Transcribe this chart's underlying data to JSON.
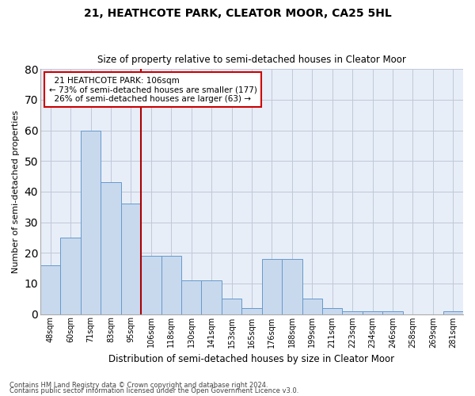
{
  "title1": "21, HEATHCOTE PARK, CLEATOR MOOR, CA25 5HL",
  "title2": "Size of property relative to semi-detached houses in Cleator Moor",
  "xlabel": "Distribution of semi-detached houses by size in Cleator Moor",
  "ylabel": "Number of semi-detached properties",
  "categories": [
    "48sqm",
    "60sqm",
    "71sqm",
    "83sqm",
    "95sqm",
    "106sqm",
    "118sqm",
    "130sqm",
    "141sqm",
    "153sqm",
    "165sqm",
    "176sqm",
    "188sqm",
    "199sqm",
    "211sqm",
    "223sqm",
    "234sqm",
    "246sqm",
    "258sqm",
    "269sqm",
    "281sqm"
  ],
  "values": [
    16,
    25,
    60,
    43,
    36,
    19,
    19,
    11,
    11,
    5,
    2,
    18,
    18,
    5,
    2,
    1,
    1,
    1,
    0,
    0,
    1
  ],
  "highlight_index": 5,
  "highlight_label": "21 HEATHCOTE PARK: 106sqm",
  "pct_smaller": 73,
  "count_smaller": 177,
  "pct_larger": 26,
  "count_larger": 63,
  "bar_color": "#c8d9ee",
  "bar_edge_color": "#6699cc",
  "highlight_line_color": "#aa0000",
  "annotation_box_color": "#ffffff",
  "annotation_border_color": "#cc0000",
  "background_color": "#e8eef8",
  "ylim": [
    0,
    80
  ],
  "yticks": [
    0,
    10,
    20,
    30,
    40,
    50,
    60,
    70,
    80
  ],
  "footer1": "Contains HM Land Registry data © Crown copyright and database right 2024.",
  "footer2": "Contains public sector information licensed under the Open Government Licence v3.0."
}
